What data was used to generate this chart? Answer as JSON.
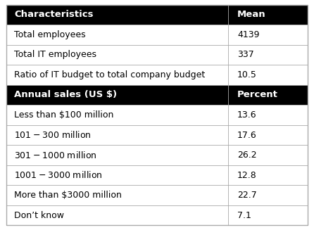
{
  "header1": {
    "col1": "Characteristics",
    "col2": "Mean"
  },
  "section1_rows": [
    {
      "col1": "Total employees",
      "col2": "4139"
    },
    {
      "col1": "Total IT employees",
      "col2": "337"
    },
    {
      "col1": "Ratio of IT budget to total company budget",
      "col2": "10.5"
    }
  ],
  "header2": {
    "col1": "Annual sales (US $)",
    "col2": "Percent"
  },
  "section2_rows": [
    {
      "col1": "Less than $100 million",
      "col2": "13.6"
    },
    {
      "col1": "$101 - $300 million",
      "col2": "17.6"
    },
    {
      "col1": "$301 - $1000 million",
      "col2": "26.2"
    },
    {
      "col1": "$1001 - $3000 million",
      "col2": "12.8"
    },
    {
      "col1": "More than $3000 million",
      "col2": "22.7"
    },
    {
      "col1": "Don’t know",
      "col2": "7.1"
    }
  ],
  "header_bg": "#000000",
  "header_fg": "#ffffff",
  "row_bg": "#ffffff",
  "border_color": "#aaaaaa",
  "col_split": 0.735,
  "font_size": 9.0,
  "header_font_size": 9.5,
  "total_rows": 11,
  "fig_width": 4.46,
  "fig_height": 3.27,
  "dpi": 100
}
